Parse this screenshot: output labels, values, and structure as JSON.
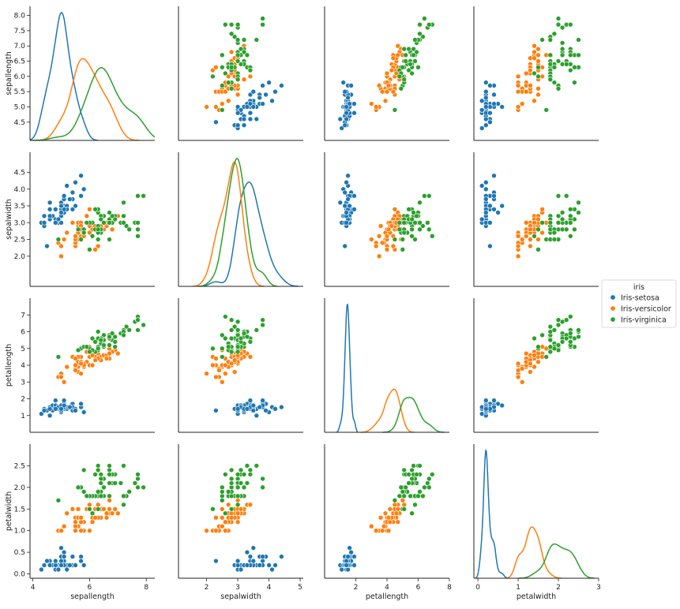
{
  "chart_data": {
    "type": "scatter",
    "title": "",
    "variables": [
      "sepallength",
      "sepalwidth",
      "petallength",
      "petalwidth"
    ],
    "legend": {
      "title": "iris",
      "placement": "right",
      "entries": [
        "Iris-setosa",
        "Iris-versicolor",
        "Iris-virginica"
      ]
    },
    "colors": {
      "Iris-setosa": "#1f77b4",
      "Iris-versicolor": "#ff7f0e",
      "Iris-virginica": "#2ca02c"
    },
    "axes": {
      "sepallength": {
        "label": "sepallength",
        "lim": [
          3.9,
          8.3
        ],
        "ticks": [
          "4",
          "6",
          "8"
        ],
        "tick_values": [
          4,
          6,
          8
        ],
        "y_ticks": [
          "4.5",
          "5.0",
          "5.5",
          "6.0",
          "6.5",
          "7.0",
          "7.5",
          "8.0"
        ],
        "y_tick_values": [
          4.5,
          5.0,
          5.5,
          6.0,
          6.5,
          7.0,
          7.5,
          8.0
        ]
      },
      "sepalwidth": {
        "label": "sepalwidth",
        "lim": [
          1.1,
          5.1
        ],
        "ticks": [
          "2",
          "3",
          "4",
          "5"
        ],
        "tick_values": [
          2,
          3,
          4,
          5
        ],
        "y_ticks": [
          "2.0",
          "2.5",
          "3.0",
          "3.5",
          "4.0",
          "4.5"
        ],
        "y_tick_values": [
          2.0,
          2.5,
          3.0,
          3.5,
          4.0,
          4.5
        ]
      },
      "petallength": {
        "label": "petallength",
        "lim": [
          0,
          8
        ],
        "ticks": [
          "2",
          "4",
          "6",
          "8"
        ],
        "tick_values": [
          2,
          4,
          6,
          8
        ],
        "y_ticks": [
          "1",
          "2",
          "3",
          "4",
          "5",
          "6",
          "7"
        ],
        "y_tick_values": [
          1,
          2,
          3,
          4,
          5,
          6,
          7
        ]
      },
      "petalwidth": {
        "label": "petalwidth",
        "lim": [
          -0.1,
          3.0
        ],
        "ticks": [
          "0",
          "1",
          "2",
          "3"
        ],
        "tick_values": [
          0,
          1,
          2,
          3
        ],
        "y_ticks": [
          "0.0",
          "0.5",
          "1.0",
          "1.5",
          "2.0",
          "2.5"
        ],
        "y_tick_values": [
          0.0,
          0.5,
          1.0,
          1.5,
          2.0,
          2.5
        ]
      }
    },
    "series": [
      {
        "name": "Iris-setosa",
        "sepallength": [
          5.1,
          4.9,
          4.7,
          4.6,
          5.0,
          5.4,
          4.6,
          5.0,
          4.4,
          4.9,
          5.4,
          4.8,
          4.8,
          4.3,
          5.8,
          5.7,
          5.4,
          5.1,
          5.7,
          5.1,
          5.4,
          5.1,
          4.6,
          5.1,
          4.8,
          5.0,
          5.0,
          5.2,
          5.2,
          4.7,
          4.8,
          5.4,
          5.2,
          5.5,
          4.9,
          5.0,
          5.5,
          4.9,
          4.4,
          5.1,
          5.0,
          4.5,
          4.4,
          5.0,
          5.1,
          4.8,
          5.1,
          4.6,
          5.3,
          5.0
        ],
        "sepalwidth": [
          3.5,
          3.0,
          3.2,
          3.1,
          3.6,
          3.9,
          3.4,
          3.4,
          2.9,
          3.1,
          3.7,
          3.4,
          3.0,
          3.0,
          4.0,
          4.4,
          3.9,
          3.5,
          3.8,
          3.8,
          3.4,
          3.7,
          3.6,
          3.3,
          3.4,
          3.0,
          3.4,
          3.5,
          3.4,
          3.2,
          3.1,
          3.4,
          4.1,
          4.2,
          3.1,
          3.2,
          3.5,
          3.1,
          3.0,
          3.4,
          3.5,
          2.3,
          3.2,
          3.5,
          3.8,
          3.0,
          3.8,
          3.2,
          3.7,
          3.3
        ],
        "petallength": [
          1.4,
          1.4,
          1.3,
          1.5,
          1.4,
          1.7,
          1.4,
          1.5,
          1.4,
          1.5,
          1.5,
          1.6,
          1.4,
          1.1,
          1.2,
          1.5,
          1.3,
          1.4,
          1.7,
          1.5,
          1.7,
          1.5,
          1.0,
          1.7,
          1.9,
          1.6,
          1.6,
          1.5,
          1.4,
          1.6,
          1.6,
          1.5,
          1.5,
          1.4,
          1.5,
          1.2,
          1.3,
          1.5,
          1.3,
          1.5,
          1.3,
          1.3,
          1.3,
          1.6,
          1.9,
          1.4,
          1.6,
          1.4,
          1.5,
          1.4
        ],
        "petalwidth": [
          0.2,
          0.2,
          0.2,
          0.2,
          0.2,
          0.4,
          0.3,
          0.2,
          0.2,
          0.1,
          0.2,
          0.2,
          0.1,
          0.1,
          0.2,
          0.4,
          0.4,
          0.3,
          0.3,
          0.3,
          0.2,
          0.4,
          0.2,
          0.5,
          0.2,
          0.2,
          0.4,
          0.2,
          0.2,
          0.2,
          0.2,
          0.4,
          0.1,
          0.2,
          0.1,
          0.2,
          0.2,
          0.1,
          0.2,
          0.2,
          0.3,
          0.3,
          0.2,
          0.6,
          0.4,
          0.3,
          0.2,
          0.2,
          0.2,
          0.2
        ]
      },
      {
        "name": "Iris-versicolor",
        "sepallength": [
          7.0,
          6.4,
          6.9,
          5.5,
          6.5,
          5.7,
          6.3,
          4.9,
          6.6,
          5.2,
          5.0,
          5.9,
          6.0,
          6.1,
          5.6,
          6.7,
          5.6,
          5.8,
          6.2,
          5.6,
          5.9,
          6.1,
          6.3,
          6.1,
          6.4,
          6.6,
          6.8,
          6.7,
          6.0,
          5.7,
          5.5,
          5.5,
          5.8,
          6.0,
          5.4,
          6.0,
          6.7,
          6.3,
          5.6,
          5.5,
          5.5,
          6.1,
          5.8,
          5.0,
          5.6,
          5.7,
          5.7,
          6.2,
          5.1,
          5.7
        ],
        "sepalwidth": [
          3.2,
          3.2,
          3.1,
          2.3,
          2.8,
          2.8,
          3.3,
          2.4,
          2.9,
          2.7,
          2.0,
          3.0,
          2.2,
          2.9,
          2.9,
          3.1,
          3.0,
          2.7,
          2.2,
          2.5,
          3.2,
          2.8,
          2.5,
          2.8,
          2.9,
          3.0,
          2.8,
          3.0,
          2.9,
          2.6,
          2.4,
          2.4,
          2.7,
          2.7,
          3.0,
          3.4,
          3.1,
          2.3,
          3.0,
          2.5,
          2.6,
          3.0,
          2.6,
          2.3,
          2.7,
          3.0,
          2.9,
          2.9,
          2.5,
          2.8
        ],
        "petallength": [
          4.7,
          4.5,
          4.9,
          4.0,
          4.6,
          4.5,
          4.7,
          3.3,
          4.6,
          3.9,
          3.5,
          4.2,
          4.0,
          4.7,
          3.6,
          4.4,
          4.5,
          4.1,
          4.5,
          3.9,
          4.8,
          4.0,
          4.9,
          4.7,
          4.3,
          4.4,
          4.8,
          5.0,
          4.5,
          3.5,
          3.8,
          3.7,
          3.9,
          5.1,
          4.5,
          4.5,
          4.7,
          4.4,
          4.1,
          4.0,
          4.4,
          4.6,
          4.0,
          3.3,
          4.2,
          4.2,
          4.2,
          4.3,
          3.0,
          4.1
        ],
        "petalwidth": [
          1.4,
          1.5,
          1.5,
          1.3,
          1.5,
          1.3,
          1.6,
          1.0,
          1.3,
          1.4,
          1.0,
          1.5,
          1.0,
          1.4,
          1.3,
          1.4,
          1.5,
          1.0,
          1.5,
          1.1,
          1.8,
          1.3,
          1.5,
          1.2,
          1.3,
          1.4,
          1.4,
          1.7,
          1.5,
          1.0,
          1.1,
          1.0,
          1.2,
          1.6,
          1.5,
          1.6,
          1.5,
          1.3,
          1.3,
          1.3,
          1.2,
          1.4,
          1.2,
          1.0,
          1.3,
          1.2,
          1.3,
          1.3,
          1.1,
          1.3
        ]
      },
      {
        "name": "Iris-virginica",
        "sepallength": [
          6.3,
          5.8,
          7.1,
          6.3,
          6.5,
          7.6,
          4.9,
          7.3,
          6.7,
          7.2,
          6.5,
          6.4,
          6.8,
          5.7,
          5.8,
          6.4,
          6.5,
          7.7,
          7.7,
          6.0,
          6.9,
          5.6,
          7.7,
          6.3,
          6.7,
          7.2,
          6.2,
          6.1,
          6.4,
          7.2,
          7.4,
          7.9,
          6.4,
          6.3,
          6.1,
          7.7,
          6.3,
          6.4,
          6.0,
          6.9,
          6.7,
          6.9,
          5.8,
          6.8,
          6.7,
          6.7,
          6.3,
          6.5,
          6.2,
          5.9
        ],
        "sepalwidth": [
          3.3,
          2.7,
          3.0,
          2.9,
          3.0,
          3.0,
          2.5,
          2.9,
          2.5,
          3.6,
          3.2,
          2.7,
          3.0,
          2.5,
          2.8,
          3.2,
          3.0,
          3.8,
          2.6,
          2.2,
          3.2,
          2.8,
          2.8,
          2.7,
          3.3,
          3.2,
          2.8,
          3.0,
          2.8,
          3.0,
          2.8,
          3.8,
          2.8,
          2.8,
          2.6,
          3.0,
          3.4,
          3.1,
          3.0,
          3.1,
          3.1,
          3.1,
          2.7,
          3.2,
          3.3,
          3.0,
          2.5,
          3.0,
          3.4,
          3.0
        ],
        "petallength": [
          6.0,
          5.1,
          5.9,
          5.6,
          5.8,
          6.6,
          4.5,
          6.3,
          5.8,
          6.1,
          5.1,
          5.3,
          5.5,
          5.0,
          5.1,
          5.3,
          5.5,
          6.7,
          6.9,
          5.0,
          5.7,
          4.9,
          6.7,
          4.9,
          5.7,
          6.0,
          4.8,
          4.9,
          5.6,
          5.8,
          6.1,
          6.4,
          5.6,
          5.1,
          5.6,
          6.1,
          5.6,
          5.5,
          4.8,
          5.4,
          5.6,
          5.1,
          5.1,
          5.9,
          5.7,
          5.2,
          5.0,
          5.2,
          5.4,
          5.1
        ],
        "petalwidth": [
          2.5,
          1.9,
          2.1,
          1.8,
          2.2,
          2.1,
          1.7,
          1.8,
          1.8,
          2.5,
          2.0,
          1.9,
          2.1,
          2.0,
          2.4,
          2.3,
          1.8,
          2.2,
          2.3,
          1.5,
          2.3,
          2.0,
          2.0,
          1.8,
          2.1,
          1.8,
          1.8,
          1.8,
          2.1,
          1.6,
          1.9,
          2.0,
          2.2,
          1.5,
          1.4,
          2.3,
          2.4,
          1.8,
          1.8,
          2.1,
          2.4,
          2.3,
          1.9,
          2.3,
          2.5,
          2.3,
          1.9,
          2.0,
          2.3,
          1.8
        ]
      }
    ]
  }
}
